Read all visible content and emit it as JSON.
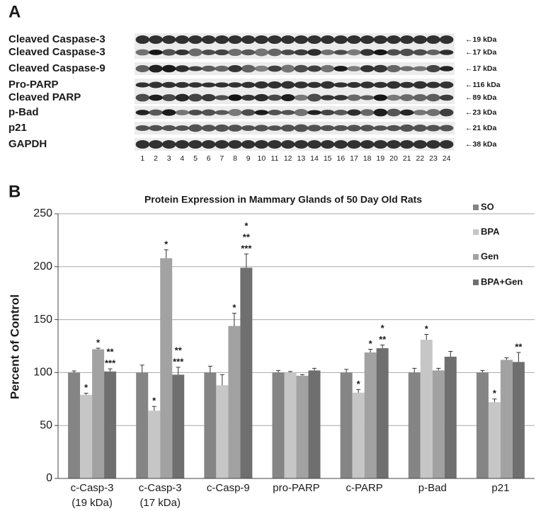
{
  "panel_a": {
    "letter": "A",
    "proteins": [
      "Cleaved Caspase-3",
      "Cleaved Caspase-3",
      "Cleaved Caspase-9",
      "Pro-PARP",
      "Cleaved PARP",
      "p-Bad",
      "p21",
      "GAPDH"
    ],
    "sizes": [
      "←19 kDa",
      "←17 kDa",
      "←17 kDa",
      "←116 kDa",
      "←89 kDa",
      "←23 kDa",
      "←21 kDa",
      "←38 kDa"
    ],
    "lanes": [
      "1",
      "2",
      "3",
      "4",
      "5",
      "6",
      "7",
      "8",
      "9",
      "10",
      "11",
      "12",
      "13",
      "14",
      "15",
      "16",
      "17",
      "18",
      "19",
      "20",
      "21",
      "22",
      "23",
      "24"
    ]
  },
  "chart_data": {
    "type": "bar",
    "panel_label": "B",
    "title": "Protein Expression in Mammary Glands of 50 Day Old Rats",
    "y_label": "Percent of Control",
    "categories": [
      [
        "c-Casp-3",
        "(19 kDa)"
      ],
      [
        "c-Casp-3",
        "(17 kDa)"
      ],
      [
        "c-Casp-9"
      ],
      [
        "pro-PARP"
      ],
      [
        "c-PARP"
      ],
      [
        "p-Bad"
      ],
      [
        "p21"
      ]
    ],
    "series": [
      {
        "name": "SO",
        "color": "#858585",
        "values": [
          100,
          100,
          100,
          100,
          100,
          100,
          100
        ],
        "errors": [
          1.5,
          7,
          6,
          2,
          3,
          4,
          2
        ],
        "significance": [
          null,
          null,
          null,
          null,
          null,
          null,
          null
        ]
      },
      {
        "name": "BPA",
        "color": "#c6c6c6",
        "values": [
          79,
          64,
          88,
          100,
          81,
          131,
          72
        ],
        "errors": [
          1.5,
          4,
          10,
          1,
          3,
          5,
          3
        ],
        "significance": [
          [
            "*"
          ],
          [
            "*"
          ],
          null,
          null,
          [
            "*"
          ],
          [
            "*"
          ],
          [
            "*"
          ]
        ]
      },
      {
        "name": "Gen",
        "color": "#a2a2a2",
        "values": [
          122,
          208,
          144,
          97,
          119,
          102,
          112
        ],
        "errors": [
          1,
          8,
          12,
          1,
          3,
          2,
          2
        ],
        "significance": [
          [
            "*"
          ],
          [
            "*"
          ],
          [
            "*"
          ],
          null,
          [
            "*"
          ],
          null,
          null
        ]
      },
      {
        "name": "BPA+Gen",
        "color": "#6f6f6f",
        "values": [
          101,
          98,
          199,
          102,
          123,
          115,
          110
        ],
        "errors": [
          2.5,
          7,
          13,
          2,
          3,
          5,
          9
        ],
        "significance": [
          [
            "**",
            "***"
          ],
          [
            "**",
            "***"
          ],
          [
            "*",
            "**",
            "***"
          ],
          null,
          [
            "*",
            "**"
          ],
          null,
          [
            "**"
          ]
        ]
      }
    ],
    "ylim": [
      0,
      250
    ],
    "yticks": [
      0,
      50,
      100,
      150,
      200,
      250
    ],
    "grid": true,
    "legend": "right"
  }
}
